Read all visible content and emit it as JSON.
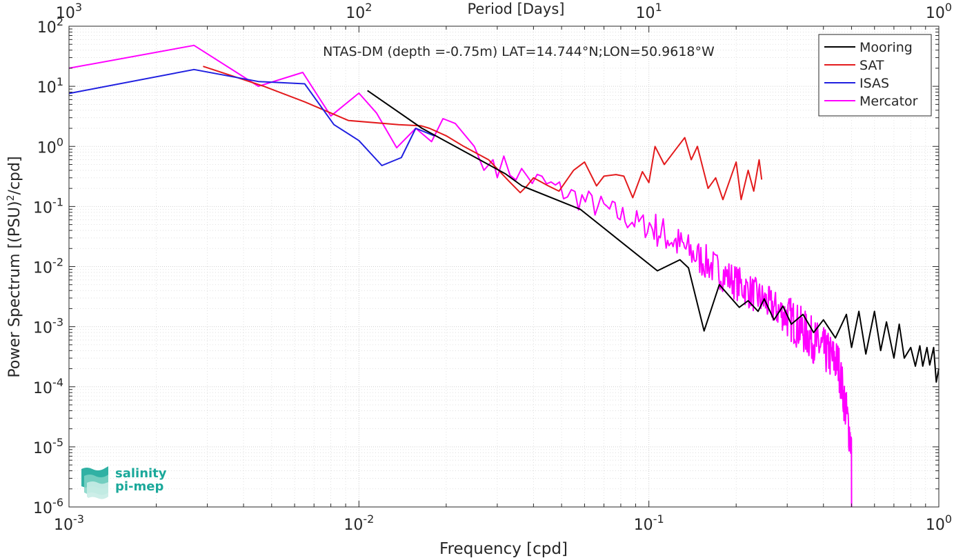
{
  "chart_data": {
    "type": "line",
    "title": "NTAS-DM (depth =-0.75m) LAT=14.744°N;LON=50.9618°W",
    "xlabel": "Frequency [cpd]",
    "ylabel_main": "Power Spectrum [(PSU)",
    "ylabel_sup": "2",
    "ylabel_tail": "/cpd]",
    "top_xlabel": "Period [Days]",
    "x_scale": "log",
    "y_scale": "log",
    "xlim": [
      0.001,
      1
    ],
    "ylim": [
      1e-06,
      100
    ],
    "grid": true,
    "legend_position": "top-right",
    "x_ticks": [
      {
        "value": 0.001,
        "base": "10",
        "exp": "-3"
      },
      {
        "value": 0.01,
        "base": "10",
        "exp": "-2"
      },
      {
        "value": 0.1,
        "base": "10",
        "exp": "-1"
      },
      {
        "value": 1,
        "base": "10",
        "exp": "0"
      }
    ],
    "top_ticks": [
      {
        "value": 0.001,
        "base": "10",
        "exp": "3"
      },
      {
        "value": 0.01,
        "base": "10",
        "exp": "2"
      },
      {
        "value": 0.1,
        "base": "10",
        "exp": "1"
      },
      {
        "value": 1,
        "base": "10",
        "exp": "0"
      }
    ],
    "y_ticks": [
      {
        "value": 100,
        "base": "10",
        "exp": "2"
      },
      {
        "value": 10,
        "base": "10",
        "exp": "1"
      },
      {
        "value": 1,
        "base": "10",
        "exp": "0"
      },
      {
        "value": 0.1,
        "base": "10",
        "exp": "-1"
      },
      {
        "value": 0.01,
        "base": "10",
        "exp": "-2"
      },
      {
        "value": 0.001,
        "base": "10",
        "exp": "-3"
      },
      {
        "value": 0.0001,
        "base": "10",
        "exp": "-4"
      },
      {
        "value": 1e-05,
        "base": "10",
        "exp": "-5"
      },
      {
        "value": 1e-06,
        "base": "10",
        "exp": "-6"
      }
    ],
    "series": [
      {
        "name": "Mooring",
        "color": "#000000",
        "points": [
          [
            0.0107,
            8.5
          ],
          [
            0.0165,
            2.0
          ],
          [
            0.032,
            0.35
          ],
          [
            0.0365,
            0.22
          ],
          [
            0.058,
            0.09
          ],
          [
            0.107,
            0.0085
          ],
          [
            0.128,
            0.013
          ],
          [
            0.137,
            0.0095
          ],
          [
            0.155,
            0.00085
          ],
          [
            0.175,
            0.005
          ],
          [
            0.205,
            0.0021
          ],
          [
            0.22,
            0.0027
          ],
          [
            0.238,
            0.0018
          ],
          [
            0.25,
            0.0029
          ],
          [
            0.27,
            0.0013
          ],
          [
            0.29,
            0.0022
          ],
          [
            0.31,
            0.0011
          ],
          [
            0.34,
            0.0016
          ],
          [
            0.37,
            0.0008
          ],
          [
            0.4,
            0.0013
          ],
          [
            0.44,
            0.00065
          ],
          [
            0.48,
            0.0016
          ],
          [
            0.5,
            0.00045
          ],
          [
            0.53,
            0.0018
          ],
          [
            0.56,
            0.00035
          ],
          [
            0.6,
            0.0018
          ],
          [
            0.63,
            0.0004
          ],
          [
            0.66,
            0.0012
          ],
          [
            0.7,
            0.0003
          ],
          [
            0.73,
            0.0011
          ],
          [
            0.76,
            0.0003
          ],
          [
            0.8,
            0.00045
          ],
          [
            0.83,
            0.00022
          ],
          [
            0.86,
            0.00048
          ],
          [
            0.88,
            0.00022
          ],
          [
            0.91,
            0.00045
          ],
          [
            0.93,
            0.00023
          ],
          [
            0.96,
            0.00045
          ],
          [
            0.98,
            0.00012
          ],
          [
            1.0,
            0.0002
          ]
        ]
      },
      {
        "name": "SAT",
        "color": "#e31a1c",
        "points": [
          [
            0.0029,
            21.5
          ],
          [
            0.0047,
            10.0
          ],
          [
            0.0065,
            5.5
          ],
          [
            0.0092,
            2.7
          ],
          [
            0.0137,
            2.3
          ],
          [
            0.0164,
            2.2
          ],
          [
            0.0175,
            2.0
          ],
          [
            0.02,
            1.5
          ],
          [
            0.023,
            1.0
          ],
          [
            0.028,
            0.6
          ],
          [
            0.033,
            0.26
          ],
          [
            0.036,
            0.17
          ],
          [
            0.038,
            0.22
          ],
          [
            0.04,
            0.3
          ],
          [
            0.045,
            0.22
          ],
          [
            0.049,
            0.18
          ],
          [
            0.055,
            0.4
          ],
          [
            0.06,
            0.55
          ],
          [
            0.066,
            0.22
          ],
          [
            0.07,
            0.32
          ],
          [
            0.077,
            0.34
          ],
          [
            0.082,
            0.32
          ],
          [
            0.088,
            0.14
          ],
          [
            0.095,
            0.38
          ],
          [
            0.1,
            0.25
          ],
          [
            0.105,
            1.0
          ],
          [
            0.113,
            0.5
          ],
          [
            0.125,
            0.95
          ],
          [
            0.133,
            1.4
          ],
          [
            0.14,
            0.6
          ],
          [
            0.147,
            1.0
          ],
          [
            0.16,
            0.2
          ],
          [
            0.17,
            0.3
          ],
          [
            0.18,
            0.13
          ],
          [
            0.2,
            0.55
          ],
          [
            0.208,
            0.13
          ],
          [
            0.22,
            0.4
          ],
          [
            0.23,
            0.18
          ],
          [
            0.24,
            0.6
          ],
          [
            0.245,
            0.28
          ]
        ]
      },
      {
        "name": "ISAS",
        "color": "#1f1fe0",
        "points": [
          [
            0.001,
            7.6
          ],
          [
            0.0027,
            19.0
          ],
          [
            0.0045,
            12.0
          ],
          [
            0.0065,
            11.0
          ],
          [
            0.0082,
            2.3
          ],
          [
            0.01,
            1.25
          ],
          [
            0.012,
            0.48
          ],
          [
            0.014,
            0.65
          ],
          [
            0.0157,
            2.0
          ],
          [
            0.0182,
            1.5
          ]
        ]
      },
      {
        "name": "Mercator",
        "color": "#ff00ff"
      }
    ]
  },
  "legend": {
    "items": [
      {
        "label": "Mooring",
        "color": "#000000"
      },
      {
        "label": "SAT",
        "color": "#e31a1c"
      },
      {
        "label": "ISAS",
        "color": "#1f1fe0"
      },
      {
        "label": "Mercator",
        "color": "#ff00ff"
      }
    ]
  },
  "logo": {
    "line1": "salinity",
    "line2": "pi-mep",
    "color": "#1aa89a"
  }
}
